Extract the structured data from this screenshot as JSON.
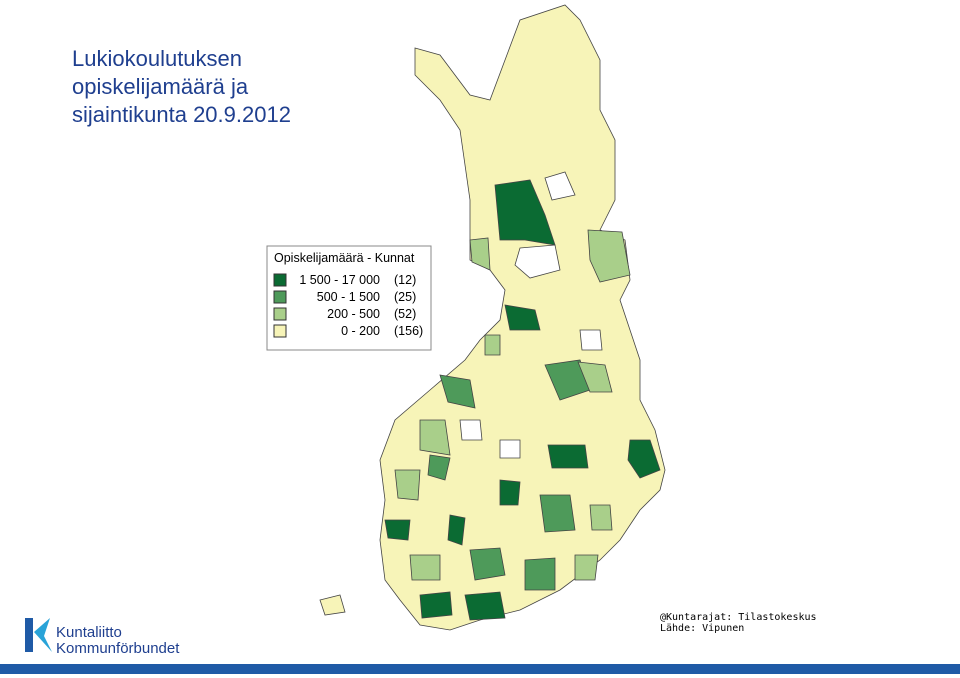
{
  "header": {
    "title": [
      "Lukiokoulutuksen",
      "opiskelijamäärä ja",
      "sijaintikunta 20.9.2012"
    ]
  },
  "legend": {
    "title": "Opiskelijamäärä - Kunnat",
    "items": [
      {
        "range": "1 500 - 17 000",
        "count": "(12)",
        "color": "#0b6b33"
      },
      {
        "range": "500 -   1 500",
        "count": "(25)",
        "color": "#4e9a5a"
      },
      {
        "range": "200 -     500",
        "count": "(52)",
        "color": "#a9cf8a"
      },
      {
        "range": "0 -     200",
        "count": "(156)",
        "color": "#f7f4b8"
      }
    ]
  },
  "credits": [
    "@Kuntarajat:  Tilastokeskus",
    "Lähde:  Vipunen"
  ],
  "logo": [
    "Kuntaliitto",
    "Kommunförbundet"
  ]
}
